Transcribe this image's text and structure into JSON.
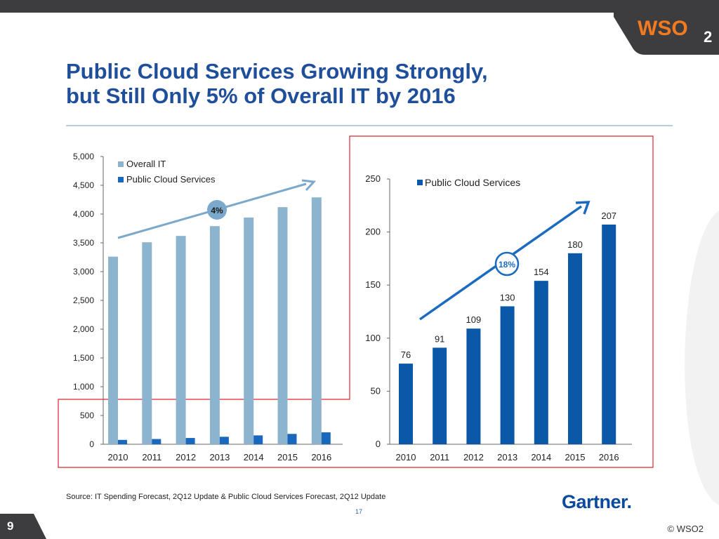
{
  "slide": {
    "title_line1": "Public Cloud Services Growing Strongly,",
    "title_line2": "but Still Only 5% of Overall IT by 2016",
    "source": "Source: IT Spending Forecast, 2Q12 Update & Public Cloud Services Forecast, 2Q12 Update",
    "inner_slide_number": "17",
    "page_number": "9",
    "copyright": "© WSO2",
    "logo_text": "WSO",
    "logo_subscript": "2",
    "partner_logo": "Gartner",
    "partner_logo_dot": "."
  },
  "colors": {
    "title": "#1f4e9a",
    "overall_it": "#8db4cf",
    "public_cloud": "#1a68bd",
    "public_cloud_dark": "#0b58a8",
    "highlight_border": "#d9262e",
    "arrow_left": "#7aa9cc",
    "arrow_right": "#1a6bbf",
    "logo_orange": "#f47a20",
    "dark": "#3d3d3f"
  },
  "chart_data": [
    {
      "type": "bar",
      "categories": [
        "2010",
        "2011",
        "2012",
        "2013",
        "2014",
        "2015",
        "2016"
      ],
      "series": [
        {
          "name": "Overall IT",
          "values": [
            3260,
            3510,
            3620,
            3790,
            3940,
            4120,
            4290
          ]
        },
        {
          "name": "Public Cloud Services",
          "values": [
            76,
            91,
            109,
            130,
            154,
            180,
            207
          ]
        }
      ],
      "ylim": [
        0,
        5000
      ],
      "yticks": [
        0,
        500,
        1000,
        1500,
        2000,
        2500,
        3000,
        3500,
        4000,
        4500,
        5000
      ],
      "ytick_labels": [
        "0",
        "500",
        "1,000",
        "1,500",
        "2,000",
        "2,500",
        "3,000",
        "3,500",
        "4,000",
        "4,500",
        "5,000"
      ],
      "legend_position": "top-left",
      "annotation": "4%"
    },
    {
      "type": "bar",
      "categories": [
        "2010",
        "2011",
        "2012",
        "2013",
        "2014",
        "2015",
        "2016"
      ],
      "series": [
        {
          "name": "Public Cloud Services",
          "values": [
            76,
            91,
            109,
            130,
            154,
            180,
            207
          ]
        }
      ],
      "data_labels": [
        "76",
        "91",
        "109",
        "130",
        "154",
        "180",
        "207"
      ],
      "ylim": [
        0,
        250
      ],
      "yticks": [
        0,
        50,
        100,
        150,
        200,
        250
      ],
      "ytick_labels": [
        "0",
        "50",
        "100",
        "150",
        "200",
        "250"
      ],
      "legend_position": "top-left",
      "annotation": "18%"
    }
  ]
}
